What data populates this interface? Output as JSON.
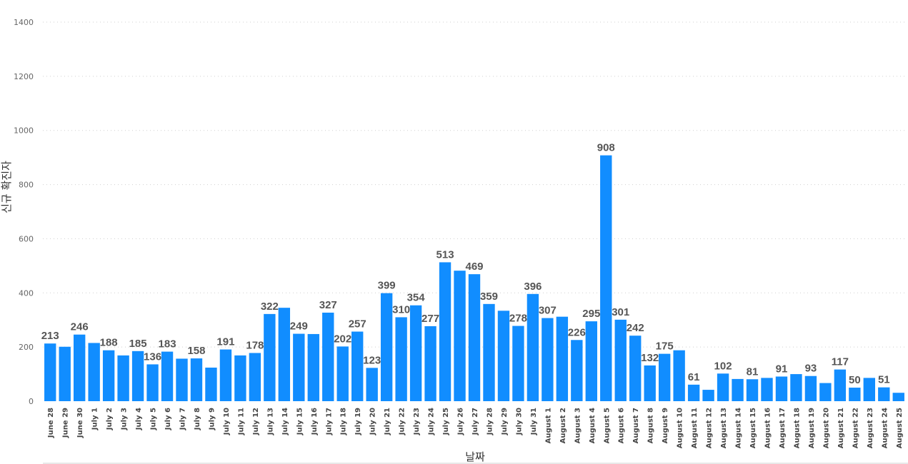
{
  "chart_data": {
    "type": "bar",
    "xlabel": "날짜",
    "ylabel": "신규 확진자",
    "ylim": [
      0,
      1400
    ],
    "yticks": [
      0,
      200,
      400,
      600,
      800,
      1000,
      1200,
      1400
    ],
    "grid": true,
    "bar_color": "#118DFF",
    "categories": [
      "June 28",
      "June 29",
      "June 30",
      "July 1",
      "July 2",
      "July 3",
      "July 4",
      "July 5",
      "July 6",
      "July 7",
      "July 8",
      "July 9",
      "July 10",
      "July 11",
      "July 12",
      "July 13",
      "July 14",
      "July 15",
      "July 16",
      "July 17",
      "July 18",
      "July 19",
      "July 20",
      "July 21",
      "July 22",
      "July 23",
      "July 24",
      "July 25",
      "July 26",
      "July 27",
      "July 28",
      "July 29",
      "July 30",
      "July 31",
      "August 1",
      "August 2",
      "August 3",
      "August 4",
      "August 5",
      "August 6",
      "August 7",
      "August 8",
      "August 9",
      "August 10",
      "August 11",
      "August 12",
      "August 13",
      "August 14",
      "August 15",
      "August 16",
      "August 17",
      "August 18",
      "August 19",
      "August 20",
      "August 21",
      "August 22",
      "August 23",
      "August 24",
      "August 25"
    ],
    "values": [
      213,
      201,
      246,
      215,
      188,
      169,
      185,
      136,
      183,
      157,
      158,
      124,
      191,
      169,
      178,
      322,
      345,
      249,
      248,
      327,
      202,
      257,
      123,
      399,
      310,
      354,
      277,
      513,
      482,
      469,
      359,
      334,
      278,
      396,
      307,
      312,
      226,
      295,
      908,
      301,
      242,
      132,
      175,
      188,
      61,
      42,
      102,
      82,
      81,
      86,
      91,
      100,
      93,
      67,
      117,
      50,
      86,
      51,
      31
    ],
    "labels": [
      "213",
      "",
      "246",
      "",
      "188",
      "",
      "185",
      "136",
      "183",
      "",
      "158",
      "",
      "191",
      "",
      "178",
      "322",
      "",
      "249",
      "",
      "327",
      "202",
      "257",
      "123",
      "399",
      "310",
      "354",
      "277",
      "513",
      "",
      "469",
      "359",
      "",
      "278",
      "396",
      "307",
      "",
      "226",
      "295",
      "908",
      "301",
      "242",
      "132",
      "175",
      "",
      "61",
      "",
      "102",
      "",
      "81",
      "",
      "91",
      "",
      "93",
      "",
      "117",
      "50",
      "",
      "51",
      ""
    ]
  }
}
